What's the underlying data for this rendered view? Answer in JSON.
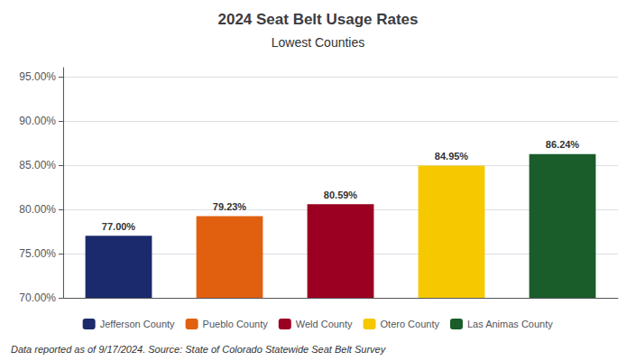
{
  "chart_data": {
    "type": "bar",
    "title": "2024 Seat Belt Usage Rates",
    "subtitle": "Lowest Counties",
    "categories": [
      "Jefferson County",
      "Pueblo County",
      "Weld County",
      "Otero County",
      "Las Animas County"
    ],
    "values": [
      77.0,
      79.23,
      80.59,
      84.95,
      86.24
    ],
    "value_labels": [
      "77.00%",
      "79.23%",
      "80.59%",
      "84.95%",
      "86.24%"
    ],
    "colors": [
      "#1a2a6c",
      "#e06010",
      "#9b0022",
      "#f5c800",
      "#1a5c2a"
    ],
    "ylim": [
      70,
      96
    ],
    "yticks": [
      {
        "value": 70,
        "label": "70.00%"
      },
      {
        "value": 75,
        "label": "75.00%"
      },
      {
        "value": 80,
        "label": "80.00%"
      },
      {
        "value": 85,
        "label": "85.00%"
      },
      {
        "value": 90,
        "label": "90.00%"
      },
      {
        "value": 95,
        "label": "95.00%"
      }
    ],
    "grid": true,
    "legend": "bottom",
    "data_labels": true,
    "tick_labels": "y",
    "annotations": [
      "Data reported as of 9/17/2024. Source: State of Colorado Statewide Seat Belt Survey"
    ]
  }
}
